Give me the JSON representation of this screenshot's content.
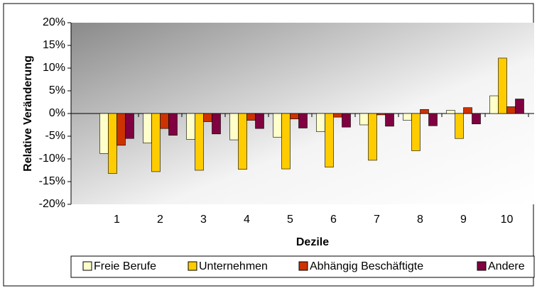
{
  "chart_data": {
    "type": "bar",
    "xlabel": "Dezile",
    "ylabel": "Relative Veränderung",
    "categories": [
      "1",
      "2",
      "3",
      "4",
      "5",
      "6",
      "7",
      "8",
      "9",
      "10"
    ],
    "series": [
      {
        "name": "Freie Berufe",
        "color": "#ffffcc",
        "values": [
          -8.8,
          -6.5,
          -5.7,
          -5.8,
          -5.2,
          -4.0,
          -2.5,
          -1.5,
          0.7,
          3.9
        ]
      },
      {
        "name": "Unternehmen",
        "color": "#ffcc00",
        "values": [
          -13.2,
          -12.8,
          -12.5,
          -12.3,
          -12.2,
          -11.8,
          -10.3,
          -8.2,
          -5.5,
          12.2
        ]
      },
      {
        "name": "Abhängig Beschäftigte",
        "color": "#cc3300",
        "values": [
          -7.0,
          -3.3,
          -1.8,
          -1.5,
          -1.2,
          -0.8,
          -0.3,
          0.9,
          1.3,
          1.5
        ]
      },
      {
        "name": "Andere",
        "color": "#800040",
        "values": [
          -5.5,
          -4.8,
          -4.5,
          -3.3,
          -3.2,
          -3.0,
          -2.8,
          -2.7,
          -2.3,
          3.2
        ]
      }
    ],
    "ylim": [
      -20,
      20
    ],
    "yticks": [
      {
        "value": -20,
        "label": "-20%"
      },
      {
        "value": -15,
        "label": "-15%"
      },
      {
        "value": -10,
        "label": "-10%"
      },
      {
        "value": -5,
        "label": "-5%"
      },
      {
        "value": 0,
        "label": "0%"
      },
      {
        "value": 5,
        "label": "5%"
      },
      {
        "value": 10,
        "label": "10%"
      },
      {
        "value": 15,
        "label": "15%"
      },
      {
        "value": 20,
        "label": "20%"
      }
    ],
    "legend": "bottom"
  }
}
